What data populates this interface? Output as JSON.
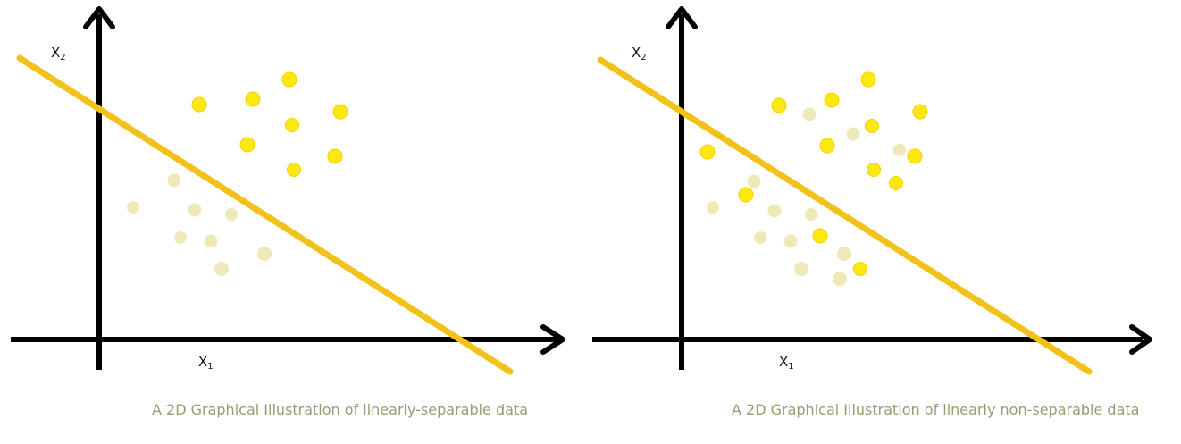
{
  "colors": {
    "axis": "#000000",
    "boundary": "#f2c21b",
    "class_a": "#fde910",
    "class_b": "#efe8b8",
    "caption": "#9a9a72"
  },
  "panels": [
    {
      "id": "linearly-separable",
      "x_axis_label": {
        "base": "X",
        "sub": "1"
      },
      "y_axis_label": {
        "base": "X",
        "sub": "2"
      },
      "caption": "A 2D Graphical Illustration of linearly-separable data"
    },
    {
      "id": "linearly-non-separable",
      "x_axis_label": {
        "base": "X",
        "sub": "1"
      },
      "y_axis_label": {
        "base": "X",
        "sub": "2"
      },
      "caption": "A 2D Graphical Illustration of linearly non-separable data"
    }
  ]
}
